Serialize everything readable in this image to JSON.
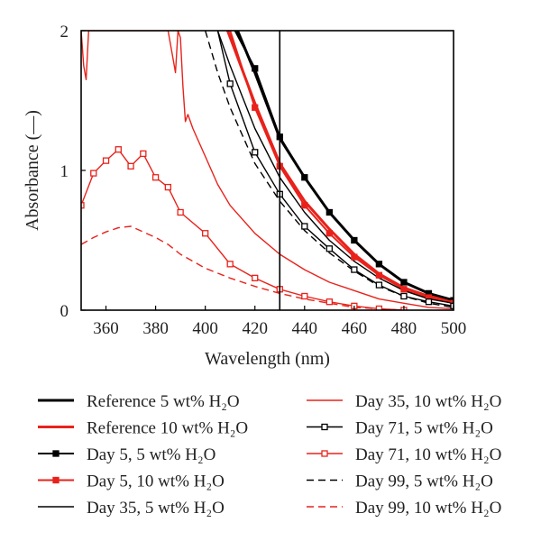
{
  "chart_data": {
    "type": "line",
    "xlabel": "Wavelength (nm)",
    "ylabel": "Absorbance (—)",
    "xlim": [
      350,
      500
    ],
    "ylim": [
      0,
      2
    ],
    "x_ticks": [
      360,
      380,
      400,
      420,
      440,
      460,
      480,
      500
    ],
    "y_ticks": [
      0,
      1,
      2
    ],
    "x_tick_labels": [
      "360",
      "380",
      "400",
      "420",
      "440",
      "460",
      "480",
      "500"
    ],
    "y_tick_labels": [
      "0",
      "1",
      "2"
    ],
    "vertical_line_x": 430,
    "grid": false,
    "legend_position": "bottom",
    "colors": {
      "black": "#000000",
      "red": "#e8221b"
    },
    "series": [
      {
        "name": "Reference 5 wt% H₂O",
        "color": "#000000",
        "dash": "solid",
        "marker": "none",
        "width": 3,
        "x": [
          413,
          420,
          430,
          440,
          450,
          460,
          470,
          480,
          490,
          500
        ],
        "y": [
          2.0,
          1.7,
          1.23,
          0.95,
          0.7,
          0.5,
          0.33,
          0.2,
          0.12,
          0.07
        ]
      },
      {
        "name": "Reference 10 wt% H₂O",
        "color": "#e8221b",
        "dash": "solid",
        "marker": "none",
        "width": 3,
        "x": [
          409,
          420,
          430,
          440,
          450,
          460,
          470,
          480,
          490,
          500
        ],
        "y": [
          2.0,
          1.48,
          1.05,
          0.78,
          0.58,
          0.4,
          0.26,
          0.16,
          0.1,
          0.06
        ]
      },
      {
        "name": "Day 5, 5 wt% H₂O",
        "color": "#000000",
        "dash": "solid",
        "marker": "filled-square",
        "width": 2,
        "x": [
          412,
          420,
          430,
          440,
          450,
          460,
          470,
          480,
          490,
          500
        ],
        "y": [
          2.0,
          1.73,
          1.24,
          0.95,
          0.7,
          0.5,
          0.33,
          0.2,
          0.12,
          0.07
        ]
      },
      {
        "name": "Day 5, 10 wt% H₂O",
        "color": "#e8221b",
        "dash": "solid",
        "marker": "filled-square",
        "width": 2,
        "x": [
          410,
          420,
          430,
          440,
          450,
          460,
          470,
          480,
          490,
          500
        ],
        "y": [
          2.0,
          1.45,
          1.03,
          0.75,
          0.55,
          0.38,
          0.25,
          0.15,
          0.09,
          0.05
        ]
      },
      {
        "name": "Day 35, 5 wt% H₂O",
        "color": "#000000",
        "dash": "solid",
        "marker": "none",
        "width": 1.4,
        "x": [
          405,
          410,
          420,
          430,
          440,
          450,
          460,
          470,
          480,
          490,
          500
        ],
        "y": [
          2.0,
          1.75,
          1.3,
          0.95,
          0.7,
          0.5,
          0.35,
          0.23,
          0.14,
          0.08,
          0.05
        ]
      },
      {
        "name": "Day 35, 10 wt% H₂O",
        "color": "#e8221b",
        "dash": "solid",
        "marker": "none",
        "width": 1.4,
        "x": [
          350,
          351,
          352,
          353,
          355,
          360,
          365,
          370,
          375,
          380,
          385,
          387,
          388,
          389,
          390,
          391,
          392,
          393,
          395,
          400,
          405,
          410,
          420,
          430,
          440,
          450,
          460,
          470,
          480,
          490,
          500
        ],
        "y": [
          2.0,
          1.75,
          1.65,
          2.0,
          2.0,
          2.0,
          2.0,
          2.0,
          2.0,
          2.0,
          2.0,
          1.8,
          1.7,
          2.0,
          1.95,
          1.6,
          1.35,
          1.4,
          1.3,
          1.1,
          0.9,
          0.75,
          0.55,
          0.4,
          0.29,
          0.2,
          0.14,
          0.08,
          0.05,
          0.02,
          0.01
        ]
      },
      {
        "name": "Day 71, 5 wt% H₂O",
        "color": "#000000",
        "dash": "solid",
        "marker": "open-square",
        "width": 1.4,
        "x": [
          405,
          410,
          420,
          430,
          440,
          450,
          460,
          470,
          480,
          490,
          500
        ],
        "y": [
          2.0,
          1.62,
          1.13,
          0.83,
          0.6,
          0.44,
          0.29,
          0.18,
          0.1,
          0.06,
          0.03
        ]
      },
      {
        "name": "Day 71, 10 wt% H₂O",
        "color": "#e8221b",
        "dash": "solid",
        "marker": "open-square",
        "width": 1.4,
        "x": [
          350,
          355,
          360,
          365,
          370,
          375,
          380,
          385,
          390,
          400,
          410,
          420,
          430,
          440,
          450,
          460,
          470,
          480,
          490,
          500
        ],
        "y": [
          0.75,
          0.98,
          1.07,
          1.15,
          1.03,
          1.12,
          0.95,
          0.88,
          0.7,
          0.55,
          0.33,
          0.23,
          0.15,
          0.1,
          0.06,
          0.03,
          0.01,
          0.0,
          -0.02,
          -0.02
        ]
      },
      {
        "name": "Day 99, 5 wt% H₂O",
        "color": "#000000",
        "dash": "dashed",
        "marker": "none",
        "width": 1.4,
        "x": [
          400,
          405,
          410,
          420,
          430,
          440,
          450,
          460,
          470,
          480,
          490,
          500
        ],
        "y": [
          2.0,
          1.7,
          1.45,
          1.05,
          0.78,
          0.57,
          0.41,
          0.28,
          0.17,
          0.1,
          0.05,
          0.02
        ]
      },
      {
        "name": "Day 99, 10 wt% H₂O",
        "color": "#e8221b",
        "dash": "dashed",
        "marker": "none",
        "width": 1.4,
        "x": [
          350,
          355,
          360,
          365,
          370,
          375,
          380,
          385,
          390,
          400,
          410,
          420,
          430,
          440,
          450,
          460,
          470,
          480,
          490,
          500
        ],
        "y": [
          0.47,
          0.52,
          0.56,
          0.59,
          0.6,
          0.56,
          0.52,
          0.47,
          0.4,
          0.3,
          0.23,
          0.17,
          0.12,
          0.08,
          0.05,
          0.02,
          0.01,
          0.0,
          -0.01,
          -0.01
        ]
      }
    ],
    "legend_order": [
      0,
      5,
      1,
      6,
      2,
      7,
      3,
      8,
      4,
      9
    ]
  }
}
